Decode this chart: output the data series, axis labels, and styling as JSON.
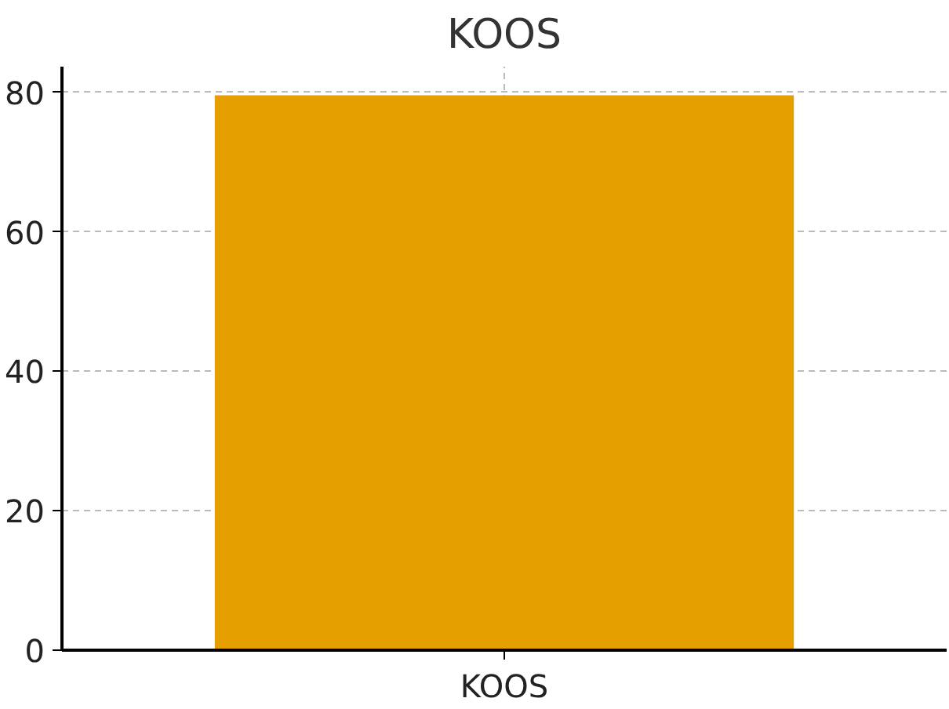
{
  "chart_data": {
    "type": "bar",
    "title": "KOOS",
    "categories": [
      "KOOS"
    ],
    "values": [
      79.6
    ],
    "color": "#e5a000",
    "ylim": [
      0,
      83.7
    ],
    "yticks": [
      0,
      20,
      40,
      60,
      80
    ],
    "grid": true
  }
}
